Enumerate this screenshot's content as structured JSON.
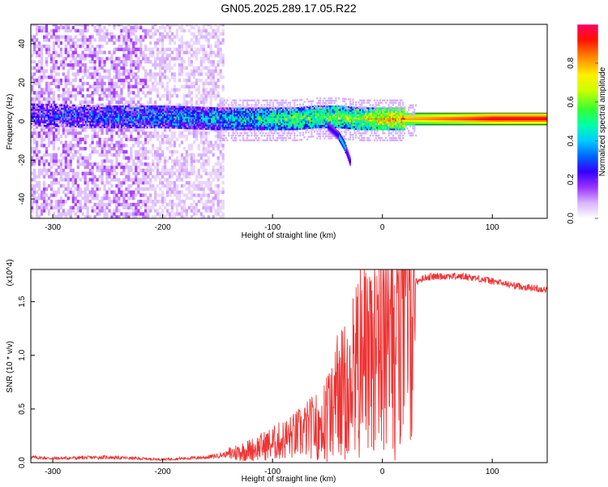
{
  "figure_title": "GN05.2025.289.17.05.R22",
  "chart_data": [
    {
      "type": "heatmap",
      "title": "GN05.2025.289.17.05.R22",
      "xlabel": "Height of straight line (km)",
      "ylabel": "Frequency (Hz)",
      "xlim": [
        -320,
        150
      ],
      "ylim": [
        -50,
        50
      ],
      "xticks": [
        -300,
        -200,
        -100,
        0,
        100
      ],
      "xtick_labels": [
        "-300",
        "-200",
        "-100",
        "0",
        "100"
      ],
      "yticks": [
        -40,
        -20,
        0,
        20,
        40
      ],
      "ytick_labels": [
        "-40",
        "-20",
        "0",
        "20",
        "40"
      ],
      "colorbar": {
        "label": "Normalized spectral amplitude",
        "range": [
          0.0,
          1.0
        ],
        "ticks": [
          0.0,
          0.2,
          0.4,
          0.6,
          0.8
        ],
        "tick_labels": [
          "0.0",
          "0.2",
          "0.4",
          "0.6",
          "0.8"
        ],
        "colors": [
          "#ffffff",
          "#cc99ff",
          "#8800ff",
          "#0000ff",
          "#00ccff",
          "#00ff88",
          "#66ff00",
          "#ffff00",
          "#ff8800",
          "#ff0000",
          "#ff0066"
        ]
      },
      "noise_region_x": [
        -320,
        -145
      ],
      "signal_trace": {
        "x": [
          -320,
          -250,
          -200,
          -150,
          -120,
          -100,
          -80,
          -60,
          -40,
          -20,
          0,
          20,
          50,
          80,
          100,
          150
        ],
        "frequency": [
          3,
          2,
          2,
          1,
          1,
          1,
          1,
          2,
          2,
          1,
          1,
          1,
          1,
          1,
          1,
          1
        ],
        "amplitude": [
          0.25,
          0.3,
          0.35,
          0.4,
          0.45,
          0.5,
          0.55,
          0.55,
          0.6,
          0.65,
          0.75,
          0.8,
          0.85,
          0.9,
          0.95,
          0.95
        ]
      },
      "side_branch": {
        "x": [
          -50,
          -40,
          -35,
          -30
        ],
        "frequency": [
          -2,
          -7,
          -12,
          -20
        ]
      }
    },
    {
      "type": "line",
      "xlabel": "Height of straight line (km)",
      "ylabel": "SNR (10 * v/v)",
      "y_multiplier": "(x10^4)",
      "xlim": [
        -320,
        150
      ],
      "ylim": [
        0,
        18000
      ],
      "xticks": [
        -300,
        -200,
        -100,
        0,
        100
      ],
      "xtick_labels": [
        "-300",
        "-200",
        "-100",
        "0",
        "100"
      ],
      "yticks": [
        0,
        5000,
        10000,
        15000
      ],
      "ytick_labels": [
        "0.0",
        "0.5",
        "1.0",
        "1.5"
      ],
      "color": "#ee3333",
      "series": [
        {
          "name": "SNR",
          "x": [
            -320,
            -300,
            -250,
            -200,
            -160,
            -140,
            -120,
            -100,
            -80,
            -60,
            -50,
            -40,
            -30,
            -20,
            -10,
            0,
            10,
            20,
            30,
            40,
            60,
            80,
            100,
            120,
            150
          ],
          "values": [
            500,
            400,
            500,
            300,
            500,
            800,
            1200,
            1800,
            2500,
            3500,
            4500,
            6500,
            8000,
            10000,
            11000,
            12000,
            13000,
            15000,
            16800,
            17300,
            17400,
            17300,
            16900,
            16500,
            16100
          ]
        }
      ]
    }
  ]
}
